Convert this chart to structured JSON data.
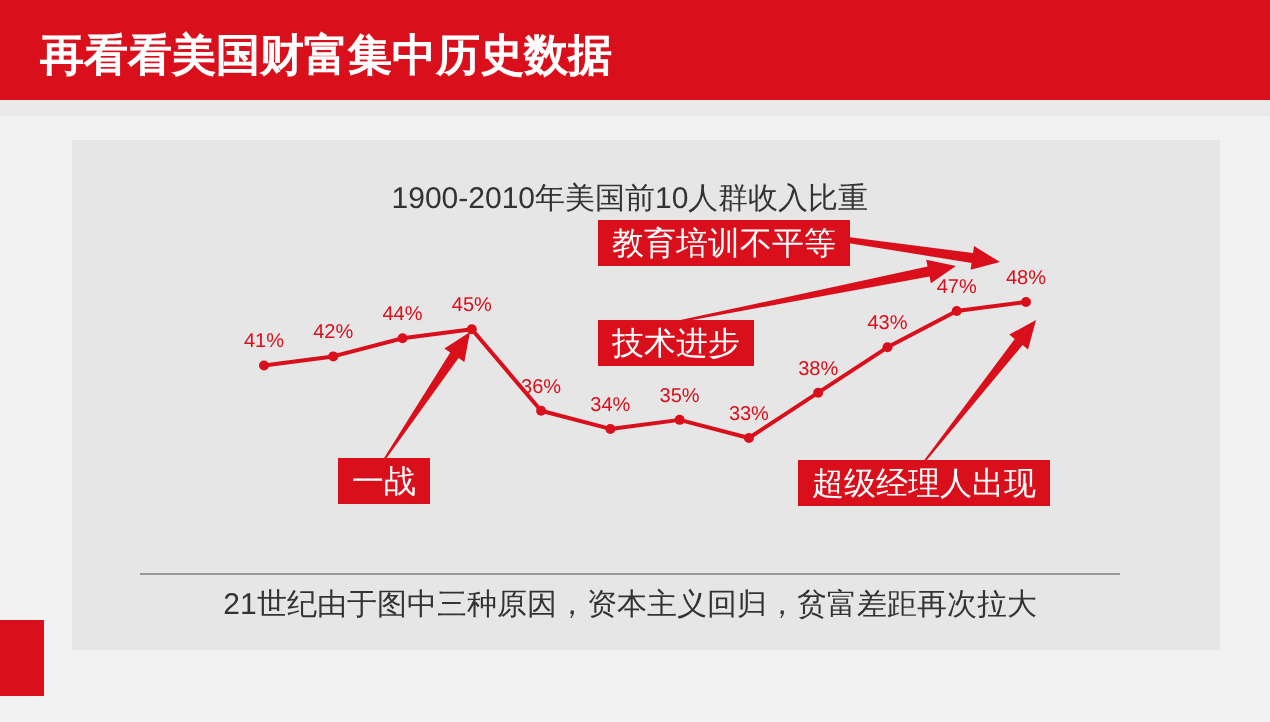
{
  "chart_data": {
    "type": "line",
    "title": "再看看美国财富集中历史数据",
    "subtitle": "1900-2010年美国前10人群收入比重",
    "categories": [
      null,
      null,
      null,
      null,
      null,
      null,
      null,
      null,
      null,
      null,
      null,
      null
    ],
    "series": [
      {
        "color": "#d9101c",
        "values": [
          41,
          42,
          44,
          45,
          36,
          34,
          35,
          33,
          38,
          43,
          47,
          48
        ],
        "value_labels": [
          "41%",
          "42%",
          "44%",
          "45%",
          "36%",
          "34%",
          "35%",
          "33%",
          "38%",
          "43%",
          "47%",
          "48%"
        ]
      }
    ],
    "marker": "circle",
    "annotations": [
      "一战",
      "技术进步",
      "教育培训不平等",
      "超级经理人出现",
      "21世纪由于图中三种原因，资本主义回归，贫富差距再次拉大"
    ]
  }
}
